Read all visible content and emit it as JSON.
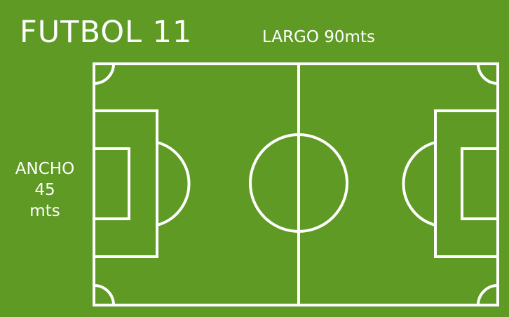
{
  "title": "FUTBOL 11",
  "length_label": "LARGO 90mts",
  "width_label": {
    "lines": [
      "ANCHO",
      "45",
      "mts"
    ]
  },
  "colors": {
    "grass": "#5e9a24",
    "lines": "#ffffff"
  }
}
